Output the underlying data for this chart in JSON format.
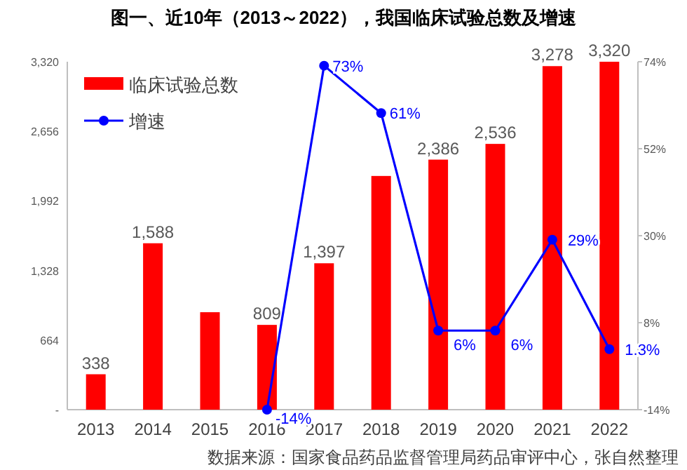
{
  "chart_data": {
    "type": "bar",
    "title": "图一、近10年（2013～2022），我国临床试验总数及增速",
    "categories": [
      "2013",
      "2014",
      "2015",
      "2016",
      "2017",
      "2018",
      "2019",
      "2020",
      "2021",
      "2022"
    ],
    "series": [
      {
        "name": "临床试验总数",
        "color": "#ff0000",
        "values": [
          338,
          1588,
          930,
          809,
          1397,
          2230,
          2386,
          2536,
          3278,
          3320
        ],
        "value_labels": [
          "338",
          "1,588",
          null,
          "809",
          "1,397",
          null,
          "2,386",
          "2,536",
          "3,278",
          "3,320"
        ]
      },
      {
        "name": "增速",
        "type": "line",
        "axis": "y2",
        "color": "#0000ff",
        "marker": "circle",
        "values": [
          null,
          null,
          null,
          -14,
          73,
          61,
          6,
          6,
          29,
          1.3
        ],
        "value_labels": [
          null,
          null,
          null,
          "-14%",
          "73%",
          "61%",
          "6%",
          "6%",
          "29%",
          "1.3%"
        ]
      }
    ],
    "ylim": [
      0,
      3320
    ],
    "yticks": [
      {
        "value": 0,
        "label": "-"
      },
      664,
      {
        "value": 1328,
        "label": "1,328"
      },
      {
        "value": 1992,
        "label": "1,992"
      },
      {
        "value": 2656,
        "label": "2,656"
      },
      {
        "value": 3320,
        "label": "3,320"
      }
    ],
    "y2lim": [
      -14,
      74
    ],
    "y2ticks": [
      {
        "value": -14,
        "label": "-14%"
      },
      {
        "value": 8,
        "label": "8%"
      },
      {
        "value": 30,
        "label": "30%"
      },
      {
        "value": 52,
        "label": "52%"
      },
      {
        "value": 74,
        "label": "74%"
      }
    ],
    "legend": "top left",
    "grid": false,
    "annotations": [
      "数据来源：国家食品药品监督管理局药品审评中心，张自然整理"
    ]
  }
}
